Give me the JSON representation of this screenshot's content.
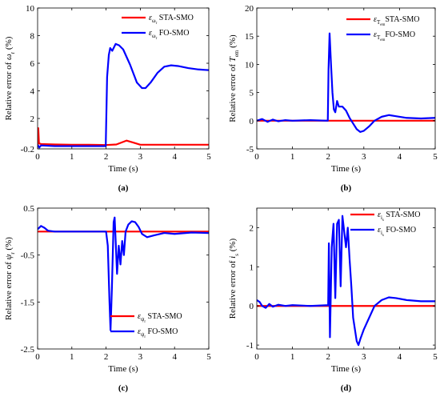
{
  "colors": {
    "sta": "#ff0000",
    "fo": "#0000ff"
  },
  "chart_data": [
    {
      "id": "a",
      "type": "line",
      "panel_label": "(a)",
      "xlabel": "Time (s)",
      "ylabel_prefix": "Relative error of ",
      "ylabel_sym": "ω",
      "ylabel_sub": "r",
      "ylabel_unit": " (%)",
      "xlim": [
        0,
        5
      ],
      "ylim": [
        -0.2,
        10
      ],
      "xticks": [
        0,
        1,
        2,
        3,
        4,
        5
      ],
      "xticklabels": [
        "0",
        "1",
        "2",
        "3",
        "4",
        "5"
      ],
      "yticks": [
        -0.2,
        2,
        4,
        6,
        8,
        10
      ],
      "yticklabels": [
        "-0.2",
        "2",
        "4",
        "6",
        "8",
        "10"
      ],
      "legend_position": "top-right",
      "series": [
        {
          "color_key": "sta",
          "legend_sym": "ε",
          "legend_sub": "ω",
          "legend_subsub": "r",
          "legend_text": " STA-SMO",
          "points": [
            [
              0,
              -0.1
            ],
            [
              0.02,
              1.3
            ],
            [
              0.04,
              0.2
            ],
            [
              0.1,
              0.15
            ],
            [
              0.5,
              0.12
            ],
            [
              1,
              0.1
            ],
            [
              1.5,
              0.1
            ],
            [
              2,
              0.08
            ],
            [
              2.3,
              0.12
            ],
            [
              2.6,
              0.4
            ],
            [
              2.8,
              0.25
            ],
            [
              3,
              0.1
            ],
            [
              3.5,
              0.1
            ],
            [
              4,
              0.1
            ],
            [
              4.5,
              0.1
            ],
            [
              5,
              0.1
            ]
          ]
        },
        {
          "color_key": "fo",
          "legend_sym": "ε",
          "legend_sub": "ω",
          "legend_subsub": "r",
          "legend_text": " FO-SMO",
          "points": [
            [
              0,
              0.1
            ],
            [
              0.05,
              -0.1
            ],
            [
              0.1,
              0.05
            ],
            [
              0.5,
              0
            ],
            [
              1,
              0
            ],
            [
              1.5,
              0
            ],
            [
              1.99,
              0
            ],
            [
              2.03,
              5
            ],
            [
              2.08,
              6.6
            ],
            [
              2.12,
              7.1
            ],
            [
              2.18,
              6.9
            ],
            [
              2.28,
              7.4
            ],
            [
              2.38,
              7.3
            ],
            [
              2.5,
              7
            ],
            [
              2.7,
              5.9
            ],
            [
              2.9,
              4.6
            ],
            [
              3.05,
              4.2
            ],
            [
              3.15,
              4.2
            ],
            [
              3.3,
              4.6
            ],
            [
              3.5,
              5.3
            ],
            [
              3.7,
              5.75
            ],
            [
              3.9,
              5.85
            ],
            [
              4.1,
              5.8
            ],
            [
              4.4,
              5.65
            ],
            [
              4.7,
              5.55
            ],
            [
              5,
              5.5
            ]
          ]
        }
      ]
    },
    {
      "id": "b",
      "type": "line",
      "panel_label": "(b)",
      "xlabel": "Time (s)",
      "ylabel_prefix": "Relative error of ",
      "ylabel_sym": "T",
      "ylabel_sub": "em",
      "ylabel_unit": " (%)",
      "xlim": [
        0,
        5
      ],
      "ylim": [
        -5,
        20
      ],
      "xticks": [
        0,
        1,
        2,
        3,
        4,
        5
      ],
      "xticklabels": [
        "0",
        "1",
        "2",
        "3",
        "4",
        "5"
      ],
      "yticks": [
        -5,
        0,
        5,
        10,
        15,
        20
      ],
      "yticklabels": [
        "-5",
        "0",
        "5",
        "10",
        "15",
        "20"
      ],
      "legend_position": "top-right",
      "series": [
        {
          "color_key": "sta",
          "legend_sym": "ε",
          "legend_sub": "T",
          "legend_subsub": "em",
          "legend_text": "STA-SMO",
          "points": [
            [
              0,
              0
            ],
            [
              5,
              0
            ]
          ]
        },
        {
          "color_key": "fo",
          "legend_sym": "ε",
          "legend_sub": "T",
          "legend_subsub": "em",
          "legend_text": "FO-SMO",
          "points": [
            [
              0,
              0
            ],
            [
              0.15,
              0.3
            ],
            [
              0.3,
              -0.2
            ],
            [
              0.45,
              0.2
            ],
            [
              0.6,
              -0.1
            ],
            [
              0.8,
              0.1
            ],
            [
              1,
              0
            ],
            [
              1.5,
              0.1
            ],
            [
              1.99,
              0
            ],
            [
              2.01,
              9
            ],
            [
              2.04,
              15.5
            ],
            [
              2.08,
              10
            ],
            [
              2.12,
              5
            ],
            [
              2.16,
              2
            ],
            [
              2.2,
              1.5
            ],
            [
              2.25,
              3.5
            ],
            [
              2.3,
              2.5
            ],
            [
              2.4,
              2.5
            ],
            [
              2.5,
              1.8
            ],
            [
              2.6,
              0.5
            ],
            [
              2.7,
              -0.5
            ],
            [
              2.8,
              -1.5
            ],
            [
              2.9,
              -2
            ],
            [
              3,
              -1.8
            ],
            [
              3.15,
              -1
            ],
            [
              3.3,
              0
            ],
            [
              3.5,
              0.7
            ],
            [
              3.7,
              1
            ],
            [
              3.9,
              0.8
            ],
            [
              4.2,
              0.5
            ],
            [
              4.6,
              0.4
            ],
            [
              5,
              0.5
            ]
          ]
        }
      ]
    },
    {
      "id": "c",
      "type": "line",
      "panel_label": "(c)",
      "xlabel": "Time (s)",
      "ylabel_prefix": "Relative error of ",
      "ylabel_sym": "ψ",
      "ylabel_sub": "r",
      "ylabel_unit": " (%)",
      "xlim": [
        0,
        5
      ],
      "ylim": [
        -2.5,
        0.5
      ],
      "xticks": [
        0,
        1,
        2,
        3,
        4,
        5
      ],
      "xticklabels": [
        "0",
        "1",
        "2",
        "3",
        "4",
        "5"
      ],
      "yticks": [
        -2.5,
        -1.5,
        -0.5,
        0.5
      ],
      "yticklabels": [
        "-2.5",
        "-1.5",
        "-0.5",
        "0.5"
      ],
      "legend_position": "bottom-right",
      "series": [
        {
          "color_key": "sta",
          "legend_sym": "ε",
          "legend_sub": "ψ",
          "legend_subsub": "r",
          "legend_text": " STA-SMO",
          "points": [
            [
              0,
              0
            ],
            [
              5,
              0
            ]
          ]
        },
        {
          "color_key": "fo",
          "legend_sym": "ε",
          "legend_sub": "ψ",
          "legend_subsub": "r",
          "legend_text": " FO-SMO",
          "points": [
            [
              0,
              0.05
            ],
            [
              0.1,
              0.12
            ],
            [
              0.2,
              0.08
            ],
            [
              0.3,
              0.02
            ],
            [
              0.5,
              0
            ],
            [
              1,
              0
            ],
            [
              1.5,
              0
            ],
            [
              2,
              0
            ],
            [
              2.05,
              -0.3
            ],
            [
              2.1,
              -1.5
            ],
            [
              2.13,
              -2.1
            ],
            [
              2.17,
              -1.2
            ],
            [
              2.22,
              0.2
            ],
            [
              2.25,
              0.3
            ],
            [
              2.28,
              -0.2
            ],
            [
              2.32,
              -0.9
            ],
            [
              2.37,
              -0.3
            ],
            [
              2.42,
              -0.7
            ],
            [
              2.47,
              -0.2
            ],
            [
              2.52,
              -0.5
            ],
            [
              2.57,
              0
            ],
            [
              2.65,
              0.15
            ],
            [
              2.75,
              0.22
            ],
            [
              2.85,
              0.2
            ],
            [
              2.95,
              0.1
            ],
            [
              3.05,
              -0.05
            ],
            [
              3.2,
              -0.12
            ],
            [
              3.4,
              -0.08
            ],
            [
              3.7,
              -0.03
            ],
            [
              4,
              -0.05
            ],
            [
              4.5,
              -0.02
            ],
            [
              5,
              -0.03
            ]
          ]
        }
      ]
    },
    {
      "id": "d",
      "type": "line",
      "panel_label": "(d)",
      "xlabel": "Time (s)",
      "ylabel_prefix": "Relative error of ",
      "ylabel_sym": "i",
      "ylabel_sub": "s",
      "ylabel_unit": " (%)",
      "xlim": [
        0,
        5
      ],
      "ylim": [
        -1.1,
        2.5
      ],
      "xticks": [
        0,
        1,
        2,
        3,
        4,
        5
      ],
      "xticklabels": [
        "0",
        "1",
        "2",
        "3",
        "4",
        "5"
      ],
      "yticks": [
        -1,
        0,
        1,
        2
      ],
      "yticklabels": [
        "-1",
        "0",
        "1",
        "2"
      ],
      "legend_position": "top-right",
      "series": [
        {
          "color_key": "sta",
          "legend_sym": "ε",
          "legend_sub": "i",
          "legend_subsub": "s",
          "legend_text": " STA-SMO",
          "points": [
            [
              0,
              0
            ],
            [
              5,
              0
            ]
          ]
        },
        {
          "color_key": "fo",
          "legend_sym": "ε",
          "legend_sub": "i",
          "legend_subsub": "s",
          "legend_text": " FO-SMO",
          "points": [
            [
              0,
              0.15
            ],
            [
              0.08,
              0.1
            ],
            [
              0.15,
              0
            ],
            [
              0.25,
              -0.05
            ],
            [
              0.35,
              0.05
            ],
            [
              0.45,
              -0.02
            ],
            [
              0.6,
              0.03
            ],
            [
              0.8,
              0
            ],
            [
              1,
              0.02
            ],
            [
              1.5,
              0
            ],
            [
              2,
              0.02
            ],
            [
              2.02,
              1.6
            ],
            [
              2.05,
              -0.8
            ],
            [
              2.1,
              1.5
            ],
            [
              2.15,
              2.1
            ],
            [
              2.2,
              0.2
            ],
            [
              2.25,
              2.1
            ],
            [
              2.3,
              2.2
            ],
            [
              2.35,
              0.5
            ],
            [
              2.4,
              2.3
            ],
            [
              2.45,
              1.9
            ],
            [
              2.5,
              1.5
            ],
            [
              2.55,
              2
            ],
            [
              2.6,
              1.2
            ],
            [
              2.65,
              0.5
            ],
            [
              2.7,
              -0.3
            ],
            [
              2.75,
              -0.6
            ],
            [
              2.8,
              -0.9
            ],
            [
              2.85,
              -1
            ],
            [
              2.9,
              -0.85
            ],
            [
              3,
              -0.6
            ],
            [
              3.15,
              -0.3
            ],
            [
              3.3,
              0
            ],
            [
              3.5,
              0.15
            ],
            [
              3.7,
              0.22
            ],
            [
              3.9,
              0.2
            ],
            [
              4.2,
              0.15
            ],
            [
              4.6,
              0.12
            ],
            [
              5,
              0.12
            ]
          ]
        }
      ]
    }
  ]
}
